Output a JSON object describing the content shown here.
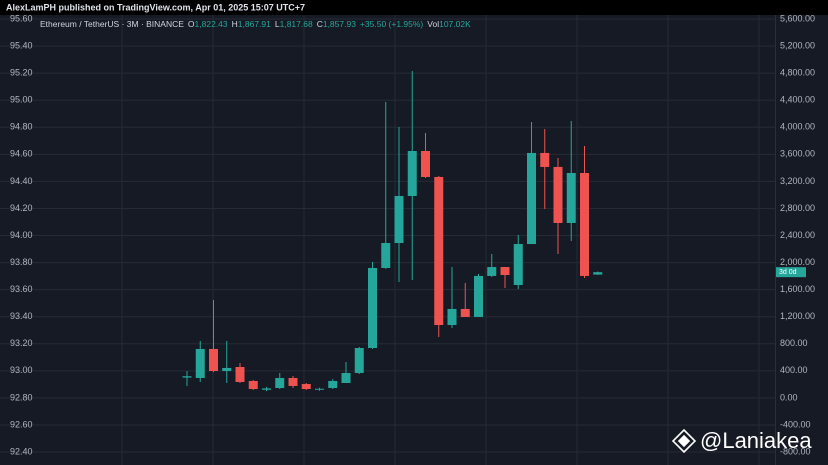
{
  "header": {
    "text": "AlexLamPH published on TradingView.com, Apr 01, 2025 15:07 UTC+7"
  },
  "chart_data": {
    "type": "candlestick",
    "legend": {
      "symbol": "Ethereum / TetherUS · 3M · BINANCE",
      "open_label": "O",
      "open": "1,822.43",
      "high_label": "H",
      "high": "1,867.91",
      "low_label": "L",
      "low": "1,817.68",
      "close_label": "C",
      "close": "1,857.93",
      "change": "+35.50 (+1.95%)",
      "volume_label": "Vol",
      "volume": "107.02K"
    },
    "categories": [
      null,
      null,
      null,
      null,
      null,
      null,
      null,
      null,
      null,
      null,
      null,
      null,
      null,
      null,
      null,
      null,
      null,
      null,
      null,
      null,
      null,
      null,
      null,
      null,
      null,
      null,
      null,
      null,
      null,
      null,
      null,
      null
    ],
    "open": [
      300,
      294,
      723,
      397,
      456,
      250,
      120,
      146,
      294,
      205,
      120,
      146,
      220,
      368,
      737,
      1920,
      2289,
      2984,
      3649,
      3265,
      1077,
      1314,
      1196,
      1802,
      1934,
      1668,
      2274,
      3620,
      3413,
      2585,
      3324,
      1822.43
    ],
    "high": [
      397,
      841,
      1447,
      841,
      515,
      265,
      160,
      368,
      324,
      220,
      150,
      280,
      530,
      752,
      2008,
      4373,
      4004,
      4831,
      3915,
      3280,
      1934,
      1698,
      1831,
      2127,
      1934,
      2407,
      4078,
      3974,
      3546,
      4092,
      3723,
      1867.91
    ],
    "low": [
      176,
      235,
      380,
      220,
      220,
      116,
      100,
      131,
      146,
      116,
      105,
      131,
      220,
      353,
      722,
      1906,
      1713,
      1742,
      3250,
      900,
      1033,
      1196,
      1196,
      1787,
      1624,
      1609,
      2274,
      2792,
      2127,
      2319,
      1772,
      1817.68
    ],
    "close": [
      320,
      723,
      397,
      442,
      235,
      131,
      140,
      294,
      176,
      131,
      135,
      250,
      368,
      737,
      1920,
      2289,
      2984,
      3649,
      3265,
      1077,
      1314,
      1196,
      1802,
      1934,
      1816,
      2274,
      3620,
      3413,
      2585,
      3324,
      1802,
      1857.93
    ],
    "up_color": "#26a69a",
    "down_color": "#ef5350",
    "ylim": [
      -800,
      5600
    ],
    "yticks": [
      {
        "value": 5600,
        "label": "5,600.00"
      },
      {
        "value": 5200,
        "label": "5,200.00"
      },
      {
        "value": 4800,
        "label": "4,800.00"
      },
      {
        "value": 4400,
        "label": "4,400.00"
      },
      {
        "value": 4000,
        "label": "4,000.00"
      },
      {
        "value": 3600,
        "label": "3,600.00"
      },
      {
        "value": 3200,
        "label": "3,200.00"
      },
      {
        "value": 2800,
        "label": "2,800.00"
      },
      {
        "value": 2400,
        "label": "2,400.00"
      },
      {
        "value": 2000,
        "label": "2,000.00"
      },
      {
        "value": 1600,
        "label": "1,600.00"
      },
      {
        "value": 1200,
        "label": "1,200.00"
      },
      {
        "value": 800,
        "label": "800.00"
      },
      {
        "value": 400,
        "label": "400.00"
      },
      {
        "value": 0,
        "label": "0.00"
      },
      {
        "value": -400,
        "label": "-400.00"
      },
      {
        "value": -800,
        "label": "-800.00"
      }
    ],
    "y2lim": [
      92.4,
      95.6
    ],
    "y2ticks": [
      {
        "value": 95.6,
        "label": "95.60"
      },
      {
        "value": 95.4,
        "label": "95.40"
      },
      {
        "value": 95.2,
        "label": "95.20"
      },
      {
        "value": 95.0,
        "label": "95.00"
      },
      {
        "value": 94.8,
        "label": "94.80"
      },
      {
        "value": 94.6,
        "label": "94.60"
      },
      {
        "value": 94.4,
        "label": "94.40"
      },
      {
        "value": 94.2,
        "label": "94.20"
      },
      {
        "value": 94.0,
        "label": "94.00"
      },
      {
        "value": 93.8,
        "label": "93.80"
      },
      {
        "value": 93.6,
        "label": "93.60"
      },
      {
        "value": 93.4,
        "label": "93.40"
      },
      {
        "value": 93.2,
        "label": "93.20"
      },
      {
        "value": 93.0,
        "label": "93.00"
      },
      {
        "value": 92.8,
        "label": "92.80"
      },
      {
        "value": 92.6,
        "label": "92.60"
      },
      {
        "value": 92.4,
        "label": "92.40"
      }
    ],
    "grid": true,
    "countdown": "3d 0d",
    "watermark": "@Laniakea"
  }
}
